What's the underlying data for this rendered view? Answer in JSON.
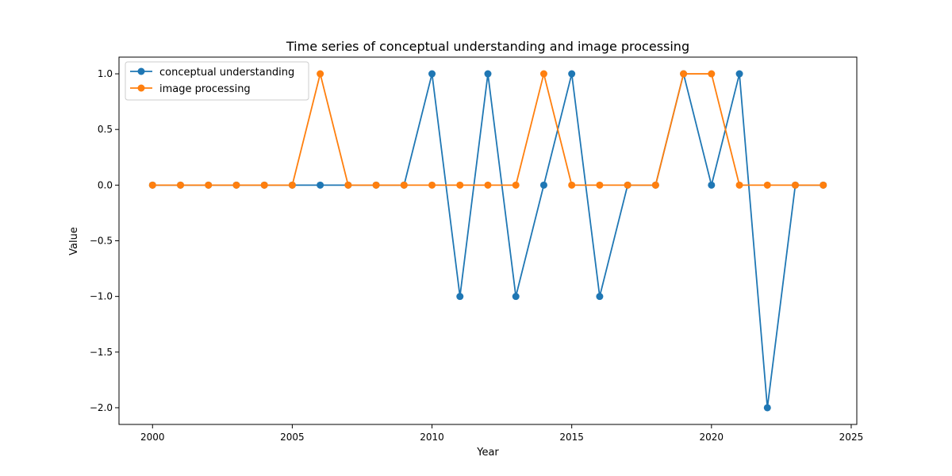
{
  "chart_data": {
    "type": "line",
    "title": "Time series of conceptual understanding and image processing",
    "xlabel": "Year",
    "ylabel": "Value",
    "x": [
      2000,
      2001,
      2002,
      2003,
      2004,
      2005,
      2006,
      2007,
      2008,
      2009,
      2010,
      2011,
      2012,
      2013,
      2014,
      2015,
      2016,
      2017,
      2018,
      2019,
      2020,
      2021,
      2022,
      2023,
      2024
    ],
    "xlim": [
      1998.8,
      2025.2
    ],
    "ylim": [
      -2.15,
      1.15
    ],
    "xticks": [
      2000,
      2005,
      2010,
      2015,
      2020,
      2025
    ],
    "xtick_labels": [
      "2000",
      "2005",
      "2010",
      "2015",
      "2020",
      "2025"
    ],
    "yticks": [
      -2.0,
      -1.5,
      -1.0,
      -0.5,
      0.0,
      0.5,
      1.0
    ],
    "ytick_labels": [
      "−2.0",
      "−1.5",
      "−1.0",
      "−0.5",
      "0.0",
      "0.5",
      "1.0"
    ],
    "grid": false,
    "legend_position": "top-left",
    "series": [
      {
        "name": "conceptual understanding",
        "color": "#1f77b4",
        "marker": "circle",
        "values": [
          0,
          0,
          0,
          0,
          0,
          0,
          0,
          0,
          0,
          0,
          1,
          -1,
          1,
          -1,
          0,
          1,
          -1,
          0,
          0,
          1,
          0,
          1,
          -2,
          0,
          0
        ]
      },
      {
        "name": "image processing",
        "color": "#ff7f0e",
        "marker": "circle",
        "values": [
          0,
          0,
          0,
          0,
          0,
          0,
          1,
          0,
          0,
          0,
          0,
          0,
          0,
          0,
          1,
          0,
          0,
          0,
          0,
          1,
          1,
          0,
          0,
          0,
          0
        ]
      }
    ]
  }
}
